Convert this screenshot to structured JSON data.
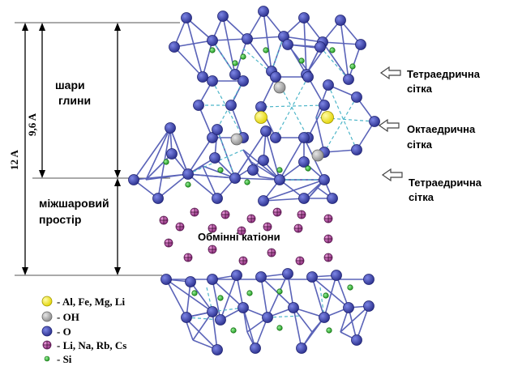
{
  "labels": {
    "clay_layers": [
      "шари",
      "глини"
    ],
    "interlayer": [
      "міжшаровий",
      "простір"
    ],
    "exchange_cations": "Обмінні катіони",
    "tetra_top": [
      "Тетраедрична",
      "сітка"
    ],
    "octa": [
      "Октаедрична",
      "сітка"
    ],
    "tetra_bottom": [
      "Тетраедрична",
      "сітка"
    ],
    "dim_12": "12 A",
    "dim_96": "9,6 A"
  },
  "legend": [
    {
      "symbol": "yellow",
      "label": "- Al, Fe, Mg, Li"
    },
    {
      "symbol": "gray",
      "label": "- OH"
    },
    {
      "symbol": "blue",
      "label": "- O"
    },
    {
      "symbol": "cation",
      "label": "- Li, Na, Rb, Cs"
    },
    {
      "symbol": "si",
      "label": "- Si"
    }
  ],
  "colors": {
    "oxygen": "#3a3fa6",
    "oh": "#b0b0b0",
    "metal": "#f2ea1f",
    "si": "#3fc23f",
    "cation": "#b04a9a",
    "bond": "#5a63b8",
    "hidden_bond": "#4fb6c9"
  },
  "icons": {
    "arrow": "hollow-arrow-left-icon"
  }
}
